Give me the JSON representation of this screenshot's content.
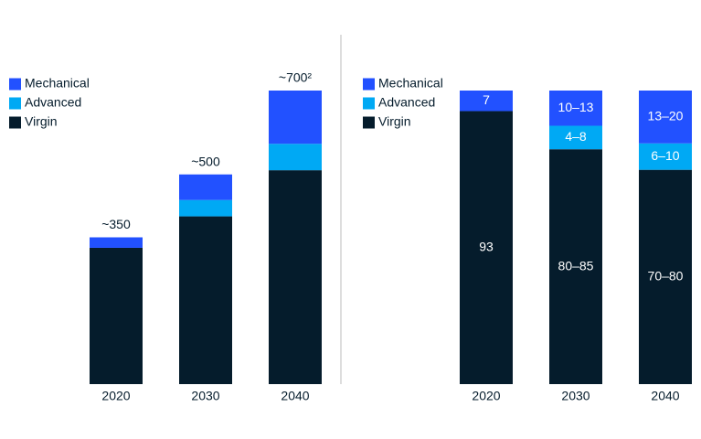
{
  "chart_data": [
    {
      "type": "bar",
      "stacked": true,
      "categories": [
        "2020",
        "2030",
        "2040"
      ],
      "series": [
        {
          "name": "Mechanical",
          "color": "#2251ff",
          "values": [
            25,
            61,
            127
          ]
        },
        {
          "name": "Advanced",
          "color": "#00a9f4",
          "values": [
            0,
            39,
            63
          ]
        },
        {
          "name": "Virgin",
          "color": "#051c2c",
          "values": [
            325,
            400,
            510
          ]
        }
      ],
      "total_labels": [
        "~350",
        "~500",
        "~700²"
      ],
      "ylim": [
        0,
        700
      ]
    },
    {
      "type": "bar",
      "stacked": true,
      "categories": [
        "2020",
        "2030",
        "2040"
      ],
      "series": [
        {
          "name": "Mechanical",
          "color": "#2251ff",
          "values": [
            7,
            12,
            18
          ],
          "value_labels": [
            "7",
            "10–13",
            "13–20"
          ]
        },
        {
          "name": "Advanced",
          "color": "#00a9f4",
          "values": [
            0,
            8,
            9
          ],
          "value_labels": [
            null,
            "4–8",
            "6–10"
          ]
        },
        {
          "name": "Virgin",
          "color": "#051c2c",
          "values": [
            93,
            80,
            73
          ],
          "value_labels": [
            "93",
            "80–85",
            "70–80"
          ]
        }
      ],
      "ylim": [
        0,
        100
      ]
    }
  ]
}
